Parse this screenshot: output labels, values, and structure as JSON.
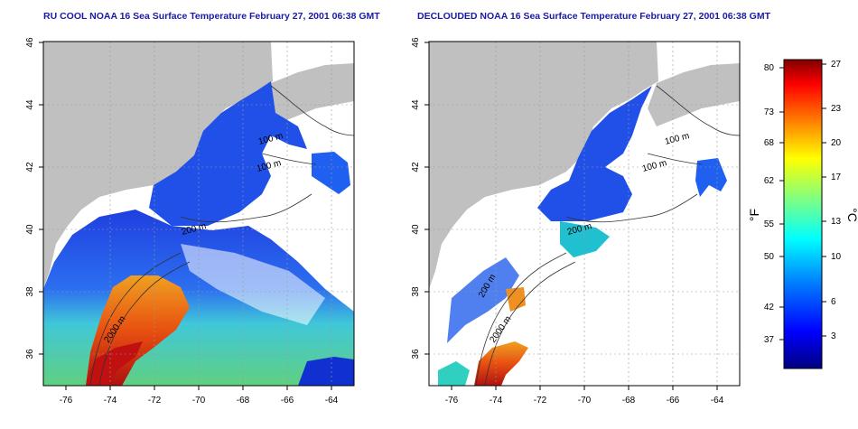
{
  "maps": [
    {
      "title": "RU COOL NOAA 16 Sea Surface Temperature February 27, 2001 06:38 GMT",
      "contour_labels": [
        "100 m",
        "100 m",
        "200 m",
        "2000 m"
      ]
    },
    {
      "title": "DECLOUDED NOAA 16 Sea Surface Temperature February 27, 2001 06:38 GMT",
      "contour_labels": [
        "100 m",
        "100 m",
        "200 m",
        "2000 m",
        "200 m"
      ]
    }
  ],
  "axes": {
    "x_ticks": [
      "-76",
      "-74",
      "-72",
      "-70",
      "-68",
      "-66",
      "-64"
    ],
    "y_ticks": [
      "36",
      "38",
      "40",
      "42",
      "44",
      "46"
    ]
  },
  "colorbar": {
    "f_label": "°F",
    "c_label": "°C",
    "f_ticks": [
      "80",
      "73",
      "68",
      "62",
      "55",
      "50",
      "42",
      "37"
    ],
    "c_ticks": [
      "27",
      "23",
      "20",
      "17",
      "13",
      "10",
      "6",
      "3"
    ],
    "stops": [
      "#000080",
      "#0000ff",
      "#0080ff",
      "#00ffff",
      "#80ff80",
      "#ffff00",
      "#ff8000",
      "#ff0000",
      "#800000"
    ]
  },
  "colors": {
    "land": "#c0c0c0",
    "cloud": "#ffffff",
    "cold": "#1e4fe0",
    "warm": "#d42010",
    "title": "#1a1aa6"
  }
}
